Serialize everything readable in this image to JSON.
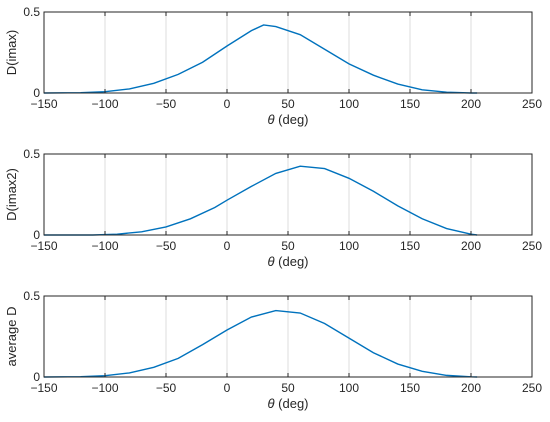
{
  "chart_data": [
    {
      "type": "line",
      "x_tick_labels": [
        "−150",
        "−100",
        "−50",
        "0",
        "50",
        "100",
        "150",
        "200",
        "250"
      ],
      "y_tick_labels": [
        "0",
        "0.5"
      ],
      "xlabel_symbol": "θ",
      "xlabel_unit": " (deg)",
      "ylabel": "D(imax)",
      "xlim": [
        -150,
        250
      ],
      "ylim": [
        0,
        0.5
      ],
      "x_ticks": [
        -150,
        -100,
        -50,
        0,
        50,
        100,
        150,
        200,
        250
      ],
      "y_ticks": [
        0,
        0.5
      ],
      "grid": "vertical",
      "line_color": "#0072BD",
      "series": [
        {
          "x": [
            -150,
            -120,
            -100,
            -80,
            -60,
            -40,
            -20,
            0,
            20,
            30,
            40,
            60,
            80,
            100,
            120,
            140,
            160,
            180,
            200,
            205
          ],
          "y": [
            0.0,
            0.002,
            0.008,
            0.025,
            0.06,
            0.115,
            0.19,
            0.29,
            0.385,
            0.42,
            0.41,
            0.36,
            0.27,
            0.18,
            0.11,
            0.055,
            0.02,
            0.005,
            0.0,
            0.0
          ]
        }
      ]
    },
    {
      "type": "line",
      "x_tick_labels": [
        "−150",
        "−100",
        "−50",
        "0",
        "50",
        "100",
        "150",
        "200",
        "250"
      ],
      "y_tick_labels": [
        "0",
        "0.5"
      ],
      "xlabel_symbol": "θ",
      "xlabel_unit": " (deg)",
      "ylabel": "D(imax2)",
      "xlim": [
        -150,
        250
      ],
      "ylim": [
        0,
        0.5
      ],
      "x_ticks": [
        -150,
        -100,
        -50,
        0,
        50,
        100,
        150,
        200,
        250
      ],
      "y_ticks": [
        0,
        0.5
      ],
      "grid": "vertical",
      "line_color": "#0072BD",
      "series": [
        {
          "x": [
            -150,
            -110,
            -90,
            -70,
            -50,
            -30,
            -10,
            0,
            20,
            40,
            60,
            80,
            100,
            120,
            140,
            160,
            180,
            200,
            205
          ],
          "y": [
            0.0,
            0.0,
            0.005,
            0.02,
            0.05,
            0.1,
            0.17,
            0.215,
            0.3,
            0.38,
            0.425,
            0.41,
            0.35,
            0.27,
            0.18,
            0.1,
            0.04,
            0.005,
            0.0
          ]
        }
      ]
    },
    {
      "type": "line",
      "x_tick_labels": [
        "−150",
        "−100",
        "−50",
        "0",
        "50",
        "100",
        "150",
        "200",
        "250"
      ],
      "y_tick_labels": [
        "0",
        "0.5"
      ],
      "xlabel_symbol": "θ",
      "xlabel_unit": " (deg)",
      "ylabel": "average D",
      "xlim": [
        -150,
        250
      ],
      "ylim": [
        0,
        0.5
      ],
      "x_ticks": [
        -150,
        -100,
        -50,
        0,
        50,
        100,
        150,
        200,
        250
      ],
      "y_ticks": [
        0,
        0.5
      ],
      "grid": "vertical",
      "line_color": "#0072BD",
      "series": [
        {
          "x": [
            -150,
            -120,
            -100,
            -80,
            -60,
            -40,
            -20,
            0,
            20,
            40,
            60,
            80,
            100,
            120,
            140,
            160,
            180,
            200,
            205
          ],
          "y": [
            0.0,
            0.002,
            0.008,
            0.025,
            0.06,
            0.115,
            0.2,
            0.29,
            0.37,
            0.41,
            0.395,
            0.33,
            0.24,
            0.15,
            0.08,
            0.035,
            0.01,
            0.001,
            0.0
          ]
        }
      ]
    }
  ]
}
